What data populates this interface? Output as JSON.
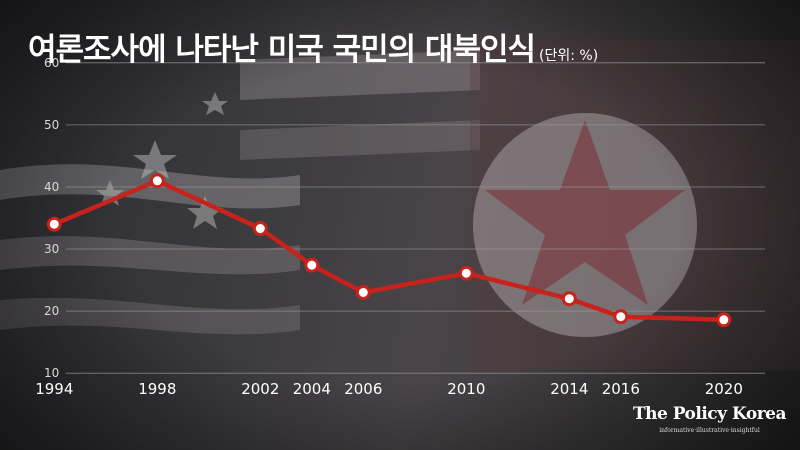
{
  "header": {
    "title": "여론조사에 나타난 미국 국민의 대북인식",
    "unit": "(단위: %)"
  },
  "brand": {
    "name": "The Policy Korea",
    "tagline": "informative·illustrative·insightful"
  },
  "colors": {
    "line": "#c8221c",
    "marker_fill": "#ffffff",
    "gridline": "#9a9a9a",
    "title": "#ffffff"
  },
  "chart_data": {
    "type": "line",
    "title": "여론조사에 나타난 미국 국민의 대북인식",
    "xlabel": "",
    "ylabel": "",
    "unit": "%",
    "x": [
      1994,
      1998,
      2002,
      2004,
      2006,
      2010,
      2014,
      2016,
      2020
    ],
    "values": [
      34,
      41,
      33.3,
      27.4,
      23,
      26.1,
      22,
      19.1,
      18.6
    ],
    "yticks": [
      10,
      20,
      30,
      40,
      50,
      60
    ],
    "ylim": [
      6,
      64
    ],
    "xlim": [
      1993.6,
      2021.6
    ],
    "grid": true,
    "legend": "none",
    "background_image": "us-and-north-korea-flags"
  }
}
